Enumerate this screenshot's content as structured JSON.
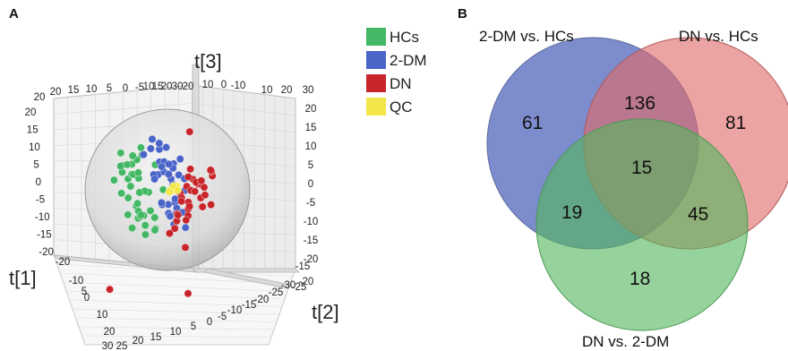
{
  "panels": {
    "a": "A",
    "b": "B"
  },
  "chart_data": [
    {
      "type": "scatter",
      "dimensions": 3,
      "axes": {
        "x": {
          "label": "t[1]",
          "ticks": [
            "30",
            "25",
            "20",
            "15",
            "10",
            "5",
            "0",
            "-5",
            "-10",
            "-15",
            "-20"
          ]
        },
        "y": {
          "label": "t[2]",
          "ticks": [
            "20",
            "15",
            "10",
            "5",
            "0",
            "-5",
            "-10",
            "-15",
            "-20",
            "-25",
            "-30"
          ]
        },
        "z": {
          "label": "t[3]",
          "ticks": [
            "20",
            "15",
            "10",
            "5",
            "0",
            "-5",
            "-10",
            "-15",
            "-20"
          ],
          "ticks_right": [
            "30",
            "20",
            "15",
            "10",
            "5",
            "0",
            "-5",
            "-10",
            "-15",
            "-20"
          ],
          "back_ticks": [
            "20",
            "20",
            "15",
            "10",
            "5",
            "0",
            "-5",
            "10",
            "15",
            "20",
            "30",
            "20",
            "10",
            "0",
            "-10",
            "10",
            "20",
            "30"
          ]
        }
      },
      "legend": {
        "placement": "top-right",
        "entries": [
          {
            "label": "HCs",
            "color": "#43b864"
          },
          {
            "label": "2-DM",
            "color": "#4a64c8"
          },
          {
            "label": "DN",
            "color": "#c8252b"
          },
          {
            "label": "QC",
            "color": "#f2e64a"
          }
        ]
      },
      "series": [
        {
          "name": "HCs",
          "color": "#43b864",
          "x": [
            -14,
            -12,
            -11,
            -9,
            -13,
            -10,
            -8,
            -15,
            -12,
            -7,
            -11,
            -9,
            -13,
            -6,
            -10,
            -14,
            -8,
            -12,
            -5,
            -9,
            -11,
            -7,
            -13,
            -10,
            -6,
            -12,
            -8,
            -15,
            -9,
            -11,
            -4,
            -7,
            -10,
            -13,
            -6,
            -8,
            -12,
            -5,
            -9,
            -14
          ],
          "y": [
            3,
            5,
            -2,
            8,
            0,
            -5,
            2,
            6,
            -8,
            4,
            10,
            -3,
            -6,
            7,
            1,
            -10,
            -1,
            12,
            3,
            -12,
            6,
            -7,
            9,
            -4,
            -9,
            2,
            11,
            -1,
            5,
            -11,
            0,
            8,
            -6,
            4,
            13,
            -2,
            7,
            -13,
            1,
            -4
          ],
          "z": [
            5,
            -3,
            8,
            2,
            -7,
            4,
            -10,
            0,
            6,
            -5,
            3,
            9,
            -2,
            7,
            -8,
            1,
            11,
            -4,
            -11,
            5,
            -6,
            2,
            -1,
            10,
            -3,
            6,
            -9,
            12,
            -12,
            3,
            8,
            -6,
            0,
            -10,
            4,
            13,
            -4,
            2,
            -7,
            7
          ]
        },
        {
          "name": "2-DM",
          "color": "#4a64c8",
          "x": [
            -4,
            -2,
            0,
            -3,
            1,
            -1,
            2,
            -5,
            0,
            3,
            -2,
            1,
            -4,
            2,
            -1,
            0,
            3,
            -3,
            1,
            -2,
            4,
            0,
            -1,
            2,
            -3,
            1,
            -4,
            0,
            2,
            -2,
            3,
            -1,
            0,
            1,
            -5,
            2
          ],
          "y": [
            4,
            -3,
            7,
            1,
            -6,
            10,
            3,
            -8,
            5,
            -1,
            9,
            -4,
            12,
            0,
            -10,
            6,
            2,
            -7,
            11,
            -2,
            5,
            -5,
            8,
            -9,
            3,
            13,
            -3,
            1,
            -11,
            7,
            -6,
            4,
            -12,
            9,
            0,
            -4
          ],
          "z": [
            10,
            4,
            -2,
            13,
            7,
            0,
            -5,
            9,
            3,
            -8,
            6,
            12,
            -1,
            8,
            2,
            -9,
            5,
            11,
            -4,
            14,
            1,
            -6,
            9,
            3,
            -3,
            7,
            15,
            -7,
            4,
            10,
            -10,
            6,
            0,
            12,
            16,
            -2
          ]
        },
        {
          "name": "DN",
          "color": "#c8252b",
          "x": [
            5,
            7,
            9,
            6,
            10,
            8,
            12,
            4,
            11,
            7,
            9,
            13,
            6,
            10,
            8,
            5,
            12,
            7,
            9,
            11,
            6,
            14,
            8,
            10,
            4,
            12,
            7,
            9,
            15,
            6,
            11,
            8
          ],
          "y": [
            -2,
            4,
            -6,
            1,
            -9,
            6,
            -3,
            8,
            -12,
            2,
            -5,
            5,
            -8,
            3,
            -14,
            -1,
            7,
            -10,
            0,
            9,
            -4,
            -7,
            4,
            -11,
            10,
            1,
            -13,
            6,
            -2,
            -15,
            3,
            -6
          ],
          "z": [
            -2,
            4,
            -6,
            1,
            -9,
            3,
            -4,
            6,
            -12,
            0,
            -7,
            5,
            -10,
            2,
            -14,
            -3,
            7,
            -11,
            -1,
            8,
            -5,
            -8,
            3,
            -13,
            9,
            -2,
            -16,
            4,
            -6,
            -18,
            1,
            -20
          ]
        },
        {
          "name": "QC",
          "color": "#f2e64a",
          "x": [
            1,
            2,
            1,
            3,
            2,
            1,
            2,
            3
          ],
          "y": [
            0,
            1,
            -1,
            0,
            1,
            -1,
            0,
            1
          ],
          "z": [
            0,
            1,
            -1,
            1,
            0,
            -1,
            1,
            0
          ]
        }
      ]
    },
    {
      "type": "venn",
      "sets": [
        {
          "name": "2-DM vs. HCs",
          "color": "#4a5fba"
        },
        {
          "name": "DN vs. HCs",
          "color": "#e06a6a"
        },
        {
          "name": "DN vs. 2-DM",
          "color": "#55b65e"
        }
      ],
      "regions": [
        {
          "sets": [
            "2-DM vs. HCs"
          ],
          "count": 61
        },
        {
          "sets": [
            "DN vs. HCs"
          ],
          "count": 81
        },
        {
          "sets": [
            "DN vs. 2-DM"
          ],
          "count": 18
        },
        {
          "sets": [
            "2-DM vs. HCs",
            "DN vs. HCs"
          ],
          "count": 136
        },
        {
          "sets": [
            "2-DM vs. HCs",
            "DN vs. 2-DM"
          ],
          "count": 19
        },
        {
          "sets": [
            "DN vs. HCs",
            "DN vs. 2-DM"
          ],
          "count": 45
        },
        {
          "sets": [
            "2-DM vs. HCs",
            "DN vs. HCs",
            "DN vs. 2-DM"
          ],
          "count": 15
        }
      ]
    }
  ]
}
